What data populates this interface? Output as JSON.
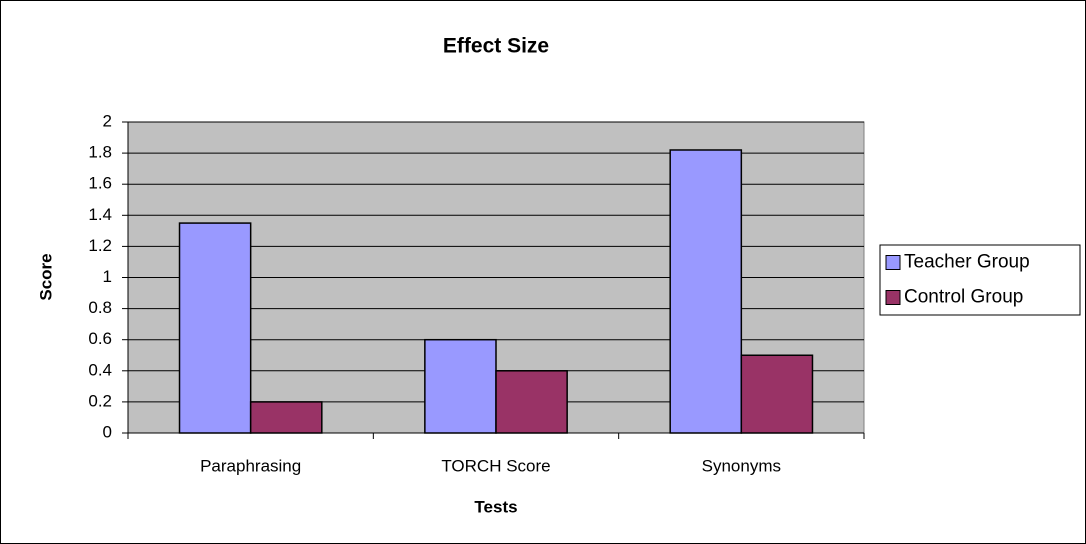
{
  "chart_data": {
    "type": "bar",
    "title": "Effect Size",
    "x_label": "Tests",
    "y_label": "Score",
    "categories": [
      "Paraphrasing",
      "TORCH Score",
      "Synonyms"
    ],
    "series": [
      {
        "name": "Teacher Group",
        "color": "#9999ff",
        "values": [
          1.35,
          0.6,
          1.82
        ]
      },
      {
        "name": "Control Group",
        "color": "#993366",
        "values": [
          0.2,
          0.4,
          0.5
        ]
      }
    ],
    "ylim": [
      0,
      2
    ],
    "yticks": [
      0,
      0.2,
      0.4,
      0.6,
      0.8,
      1,
      1.2,
      1.4,
      1.6,
      1.8,
      2
    ],
    "grid": true,
    "legend": "right",
    "plot_background": "#c0c0c0"
  }
}
